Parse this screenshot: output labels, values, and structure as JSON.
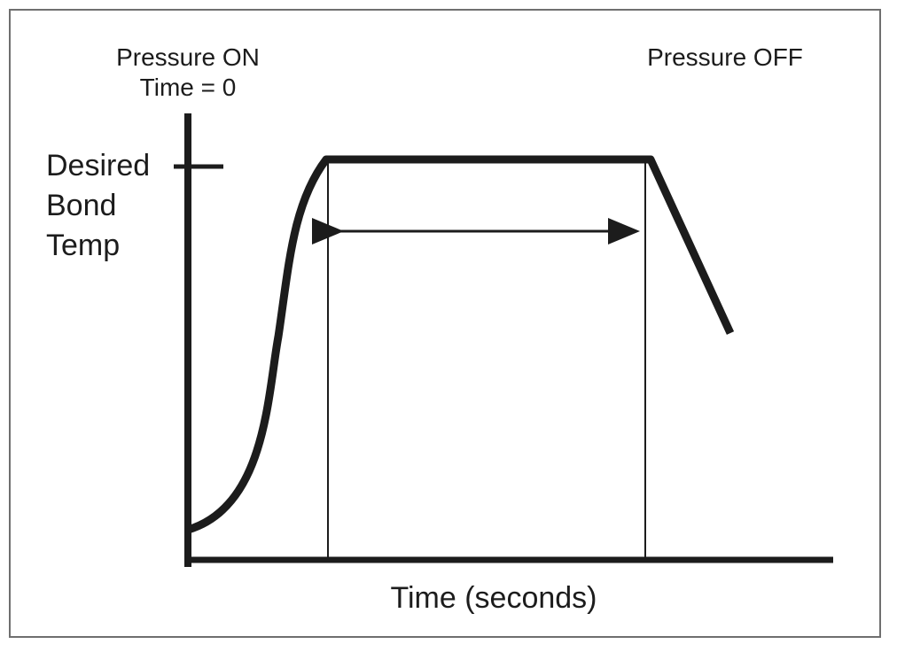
{
  "labels": {
    "pressure_on": "Pressure ON",
    "time_zero": "Time = 0",
    "pressure_off": "Pressure OFF",
    "y_label_line1": "Desired",
    "y_label_line2": "Bond",
    "y_label_line3": "Temp",
    "x_label": "Time (seconds)"
  },
  "colors": {
    "ink": "#1c1c1c",
    "frame": "#6f6f6f"
  }
}
